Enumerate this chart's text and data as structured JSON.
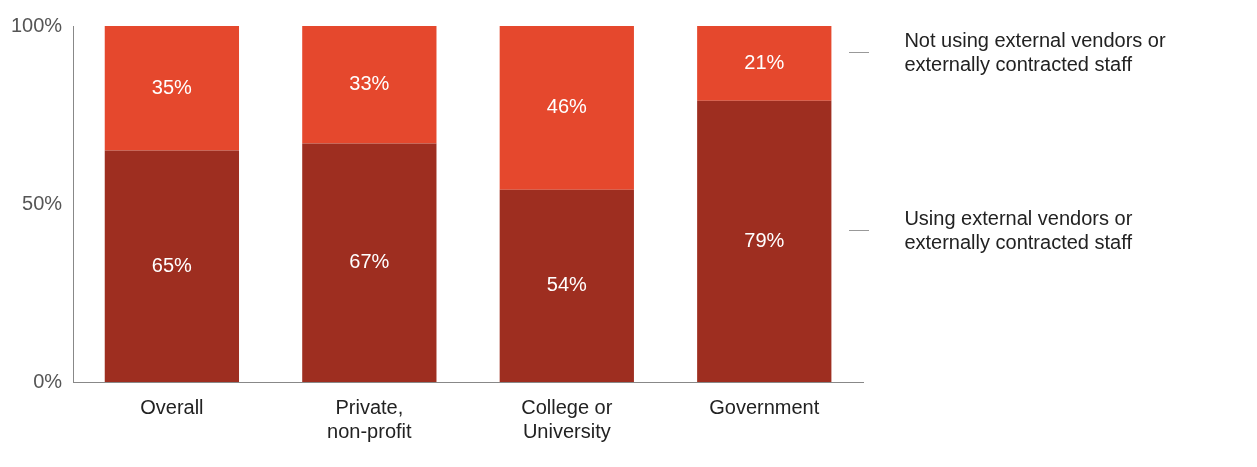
{
  "chart_data": {
    "type": "bar",
    "stacked": true,
    "categories": [
      "Overall",
      "Private, non-profit",
      "College or University",
      "Government"
    ],
    "series": [
      {
        "name": "Using external vendors or externally contracted staff",
        "color": "#9e2e20",
        "values": [
          65,
          67,
          54,
          79
        ],
        "value_labels": [
          "65%",
          "67%",
          "54%",
          "79%"
        ]
      },
      {
        "name": "Not using external vendors or externally contracted staff",
        "color": "#e5482d",
        "values": [
          35,
          33,
          46,
          21
        ],
        "value_labels": [
          "35%",
          "33%",
          "46%",
          "21%"
        ]
      }
    ],
    "ylim": [
      0,
      100
    ],
    "yticks": [
      {
        "value": 0,
        "label": "0%"
      },
      {
        "value": 50,
        "label": "50%"
      },
      {
        "value": 100,
        "label": "100%"
      }
    ],
    "grid": false,
    "legend": "right"
  }
}
